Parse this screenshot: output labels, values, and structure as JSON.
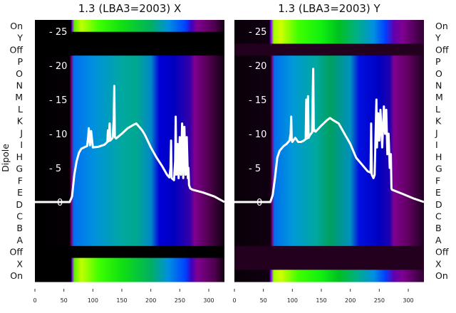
{
  "chart_data": {
    "type": "heatmap",
    "ylabel": "Dipole",
    "row_labels": [
      "On",
      "Y",
      "Off",
      "P",
      "O",
      "N",
      "M",
      "L",
      "K",
      "J",
      "I",
      "H",
      "G",
      "F",
      "E",
      "D",
      "C",
      "B",
      "A",
      "Off",
      "X",
      "On"
    ],
    "x_ticks": [
      0,
      50,
      100,
      150,
      200,
      250,
      300
    ],
    "x_range": [
      0,
      327
    ],
    "line_y_ticks": [
      0,
      5,
      10,
      15,
      20,
      25
    ],
    "line_y_range": [
      -10.8,
      27
    ],
    "panels": [
      {
        "title": "1.3 (LBA3=2003) X",
        "row_states": [
          "bright",
          "black",
          "black",
          "spec",
          "spec",
          "spec",
          "spec",
          "spec",
          "spec",
          "spec",
          "spec",
          "spec",
          "spec",
          "spec",
          "spec",
          "spec",
          "spec",
          "spec",
          "spec",
          "black",
          "bright",
          "bright"
        ],
        "line": {
          "x": [
            0,
            60,
            64,
            68,
            72,
            76,
            80,
            85,
            90,
            92,
            93,
            95,
            97,
            100,
            110,
            120,
            125,
            126,
            127,
            129,
            130,
            132,
            134,
            136,
            137,
            138,
            140,
            150,
            160,
            170,
            175,
            180,
            185,
            190,
            200,
            210,
            220,
            228,
            232,
            234,
            235,
            236,
            240,
            242,
            243,
            244,
            246,
            248,
            250,
            252,
            254,
            255,
            256,
            258,
            260,
            262,
            264,
            265,
            266,
            268,
            272,
            290,
            310,
            327
          ],
          "y": [
            0,
            0,
            0.8,
            4,
            6,
            7.2,
            7.8,
            8,
            8.2,
            9.5,
            10.8,
            8.3,
            10.4,
            8,
            8.1,
            8.4,
            8.8,
            10.5,
            8.9,
            11.5,
            9,
            9.2,
            9.4,
            12,
            17,
            9.5,
            9.3,
            10,
            10.8,
            11.3,
            11.5,
            11,
            10.5,
            9.8,
            8,
            6.5,
            5.2,
            4,
            3.6,
            5,
            9,
            3.5,
            3.2,
            6,
            12.5,
            4,
            8.5,
            3.5,
            9.5,
            4,
            11.5,
            10,
            3.5,
            11,
            4,
            9.5,
            3.5,
            5,
            2.5,
            2,
            1.8,
            1.4,
            0.8,
            0
          ]
        }
      },
      {
        "title": "1.3 (LBA3=2003) Y",
        "row_states": [
          "bright",
          "bright",
          "darkpurple",
          "spec",
          "spec",
          "spec",
          "spec",
          "spec",
          "spec",
          "spec",
          "spec",
          "spec",
          "spec",
          "spec",
          "spec",
          "spec",
          "spec",
          "spec",
          "spec",
          "darkpurple",
          "darkpurple",
          "bright"
        ],
        "line": {
          "x": [
            0,
            62,
            66,
            70,
            74,
            78,
            85,
            90,
            95,
            97,
            98,
            99,
            100,
            105,
            110,
            115,
            120,
            123,
            124,
            125,
            127,
            128,
            129,
            132,
            134,
            136,
            137,
            138,
            140,
            150,
            160,
            165,
            170,
            180,
            190,
            200,
            210,
            220,
            230,
            235,
            236,
            237,
            240,
            242,
            245,
            246,
            248,
            250,
            252,
            255,
            258,
            260,
            262,
            264,
            266,
            268,
            270,
            271,
            272,
            290,
            310,
            327
          ],
          "y": [
            0,
            0,
            1,
            3.5,
            6.5,
            7.5,
            8.2,
            8.5,
            9,
            10,
            12.5,
            9,
            8.8,
            9.4,
            8.8,
            8.8,
            9,
            9.2,
            15,
            9.3,
            15.5,
            9.4,
            9.6,
            10,
            10.2,
            19.5,
            10.4,
            10.6,
            10.3,
            11.2,
            12,
            12.3,
            12,
            11.5,
            10,
            8.5,
            6.5,
            5.5,
            4.5,
            4.3,
            11.5,
            4,
            3.5,
            4,
            15,
            8,
            13,
            9,
            13.5,
            8,
            14,
            10,
            13.5,
            7,
            10,
            5,
            7,
            2,
            1.8,
            1.2,
            0.5,
            0
          ]
        }
      }
    ]
  }
}
